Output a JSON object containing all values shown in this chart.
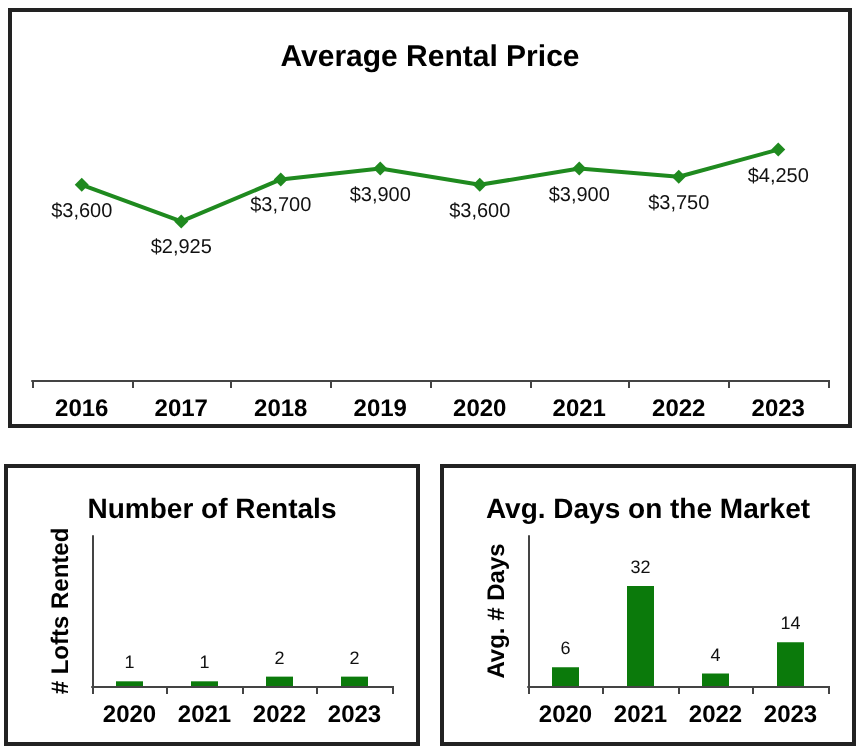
{
  "chart_data": [
    {
      "type": "line",
      "title": "Average Rental Price",
      "categories": [
        "2016",
        "2017",
        "2018",
        "2019",
        "2020",
        "2021",
        "2022",
        "2023"
      ],
      "series": [
        {
          "color": "#1f8a1f",
          "values": [
            3600,
            2925,
            3700,
            3900,
            3600,
            3900,
            3750,
            4250
          ],
          "value_labels": [
            "$3,600",
            "$2,925",
            "$3,700",
            "$3,900",
            "$3,600",
            "$3,900",
            "$3,750",
            "$4,250"
          ]
        }
      ],
      "marker": "diamond",
      "grid": false,
      "tick_labels": "x"
    },
    {
      "type": "bar",
      "title": "Number of Rentals",
      "ylabel": "# Lofts Rented",
      "categories": [
        "2020",
        "2021",
        "2022",
        "2023"
      ],
      "values": [
        1,
        1,
        2,
        2
      ],
      "color": "#0b7a0b",
      "data_labels": true,
      "grid": false,
      "tick_labels": "x"
    },
    {
      "type": "bar",
      "title": "Avg. Days on the Market",
      "ylabel": "Avg. # Days",
      "categories": [
        "2020",
        "2021",
        "2022",
        "2023"
      ],
      "values": [
        6,
        32,
        4,
        14
      ],
      "color": "#0b7a0b",
      "data_labels": true,
      "grid": false,
      "tick_labels": "x"
    }
  ]
}
